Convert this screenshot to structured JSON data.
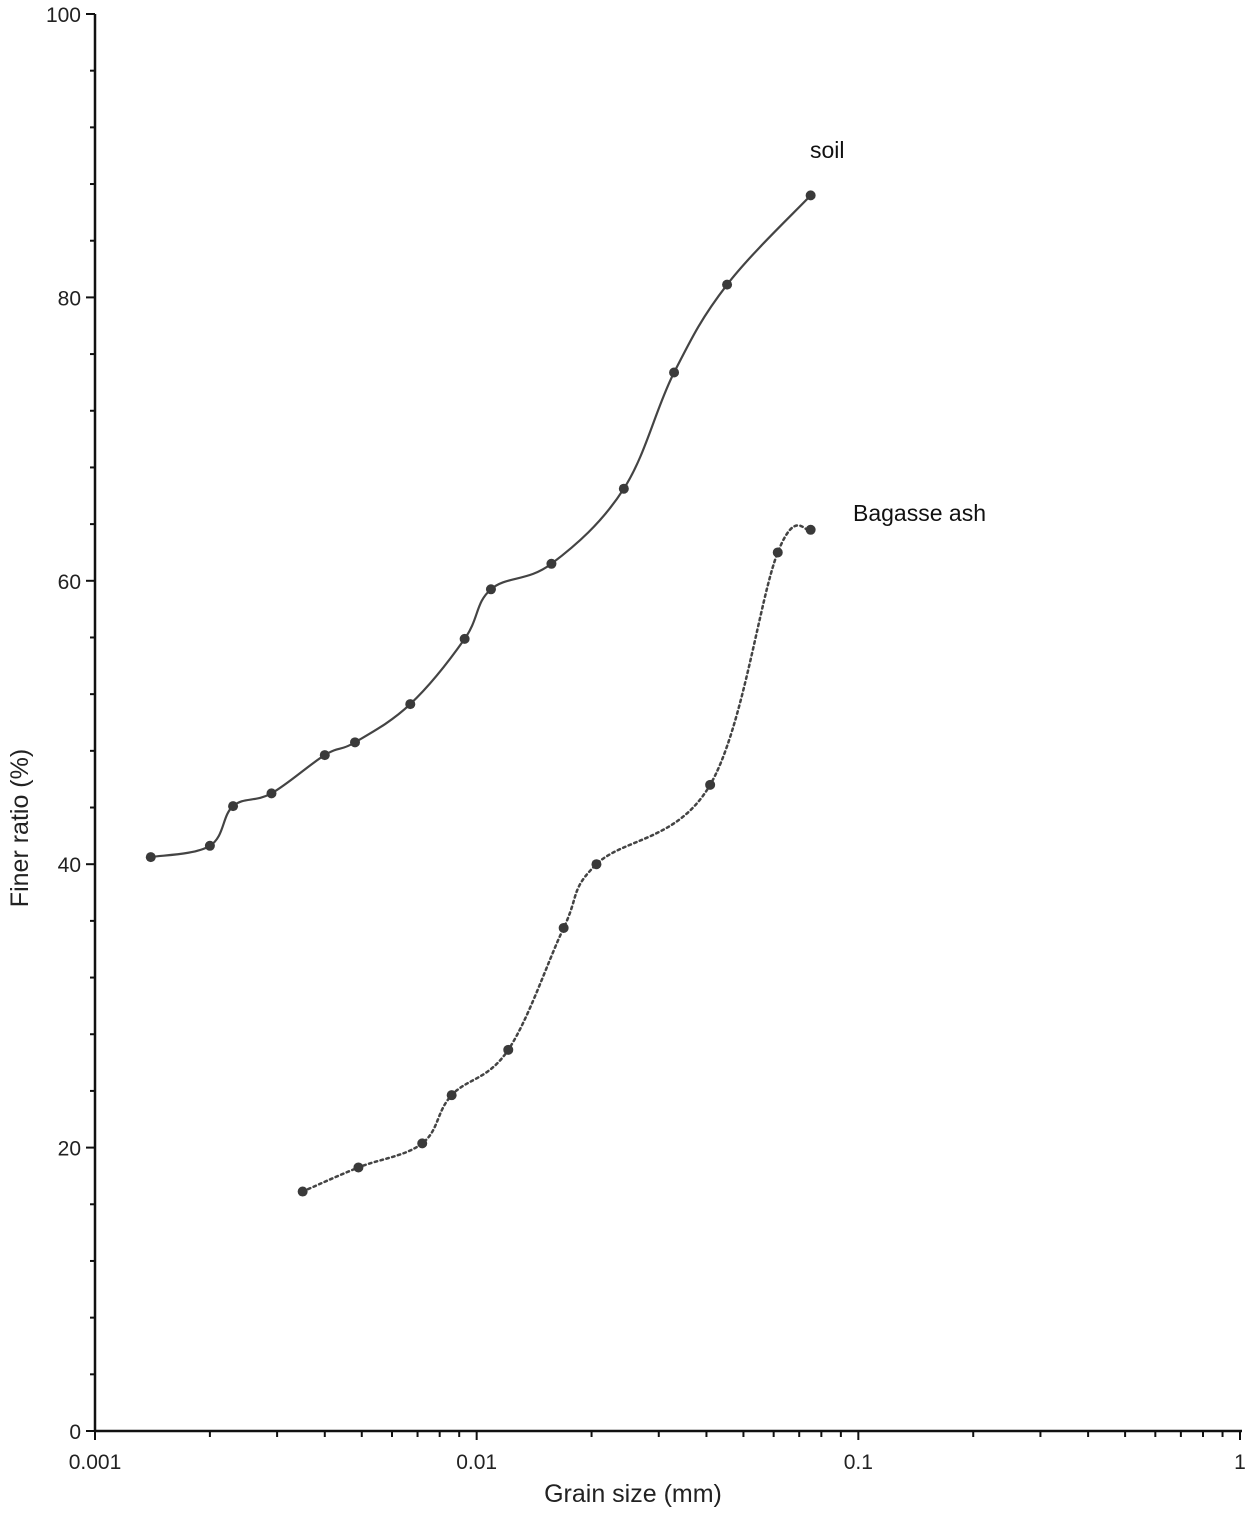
{
  "chart_data": {
    "type": "line",
    "title": "",
    "xlabel": "Grain size (mm)",
    "ylabel": "Finer ratio (%)",
    "xscale": "log",
    "xlim": [
      0.001,
      1
    ],
    "ylim": [
      0,
      100
    ],
    "x_ticks": [
      0.001,
      0.01,
      0.1,
      1
    ],
    "x_tick_labels": [
      "0.001",
      "0.01",
      "0.1",
      "1"
    ],
    "y_ticks": [
      0,
      20,
      40,
      60,
      80,
      100
    ],
    "y_tick_labels": [
      "0",
      "20",
      "40",
      "60",
      "80",
      "100"
    ],
    "y_minor_step": 4,
    "grid": false,
    "legend": "none (inline series labels)",
    "series": [
      {
        "name": "soil",
        "style": "solid",
        "color": "#444444",
        "x": [
          0.0014,
          0.002,
          0.0023,
          0.0029,
          0.004,
          0.0048,
          0.0067,
          0.0093,
          0.0109,
          0.0157,
          0.0243,
          0.0329,
          0.0453,
          0.075
        ],
        "y": [
          40.5,
          41.3,
          44.1,
          45.0,
          47.7,
          48.6,
          51.3,
          55.9,
          59.4,
          61.2,
          66.5,
          74.7,
          80.9,
          87.2
        ]
      },
      {
        "name": "Bagasse ash",
        "style": "dotted",
        "color": "#444444",
        "x": [
          0.0035,
          0.0049,
          0.0072,
          0.0086,
          0.0121,
          0.0169,
          0.0206,
          0.0409,
          0.0615,
          0.075
        ],
        "y": [
          16.9,
          18.6,
          20.3,
          23.7,
          26.9,
          35.5,
          40.0,
          45.6,
          62.0,
          63.6
        ]
      }
    ]
  }
}
